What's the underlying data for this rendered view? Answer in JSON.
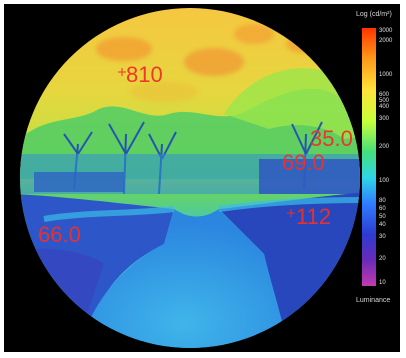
{
  "legend": {
    "title": "Log (cd/m²)",
    "footer": "Luminance",
    "ticks": [
      "3000",
      "2000",
      "1000",
      "600",
      "500",
      "400",
      "300",
      "200",
      "100",
      "80",
      "60",
      "50",
      "40",
      "30",
      "20",
      "10"
    ],
    "gradient": [
      "#ff3300",
      "#ff9a1a",
      "#ffe23a",
      "#c8ff3a",
      "#45e07a",
      "#2fd6e6",
      "#2f7dff",
      "#2c3cd2",
      "#6a2ab8",
      "#c23bb0"
    ]
  },
  "annotations": [
    {
      "label": "810"
    },
    {
      "label": "35.0"
    },
    {
      "label": "69.0"
    },
    {
      "label": "112"
    },
    {
      "label": "66.0"
    }
  ]
}
